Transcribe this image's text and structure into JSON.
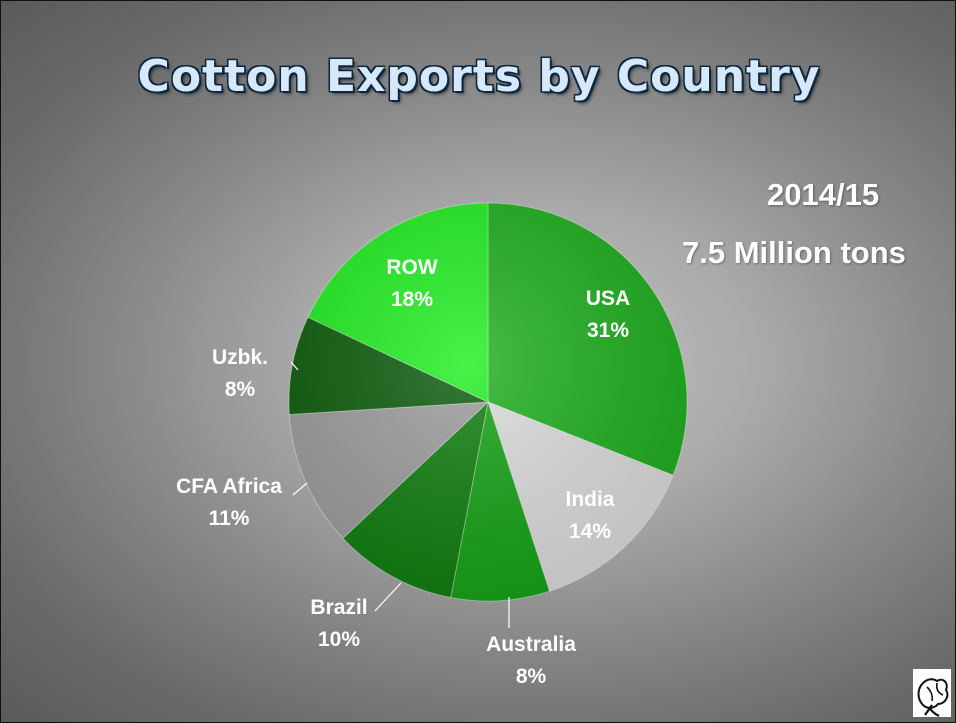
{
  "title": "Cotton Exports by Country",
  "year": "2014/15",
  "total": "7.5 Million tons",
  "chart_data": {
    "type": "pie",
    "unit": "%",
    "slices": [
      {
        "label": "USA",
        "value": 31,
        "display": "31%",
        "color": "#1faf1f",
        "labelColor": "#ffffff"
      },
      {
        "label": "India",
        "value": 14,
        "display": "14%",
        "color": "#dcdcdc",
        "labelColor": "#ffffff"
      },
      {
        "label": "Australia",
        "value": 8,
        "display": "8%",
        "color": "#16a216",
        "labelColor": "#ffffff"
      },
      {
        "label": "Brazil",
        "value": 10,
        "display": "10%",
        "color": "#0f7e0f",
        "labelColor": "#ffffff"
      },
      {
        "label": "CFA Africa",
        "value": 11,
        "display": "11%",
        "color": "#9c9c9c",
        "labelColor": "#ffffff"
      },
      {
        "label": "Uzbk.",
        "value": 8,
        "display": "8%",
        "color": "#0c5c0c",
        "labelColor": "#ffffff"
      },
      {
        "label": "ROW",
        "value": 18,
        "display": "18%",
        "color": "#22ee22",
        "labelColor": "#ffffff"
      }
    ]
  },
  "logo_icon": "cotton-boll-icon"
}
